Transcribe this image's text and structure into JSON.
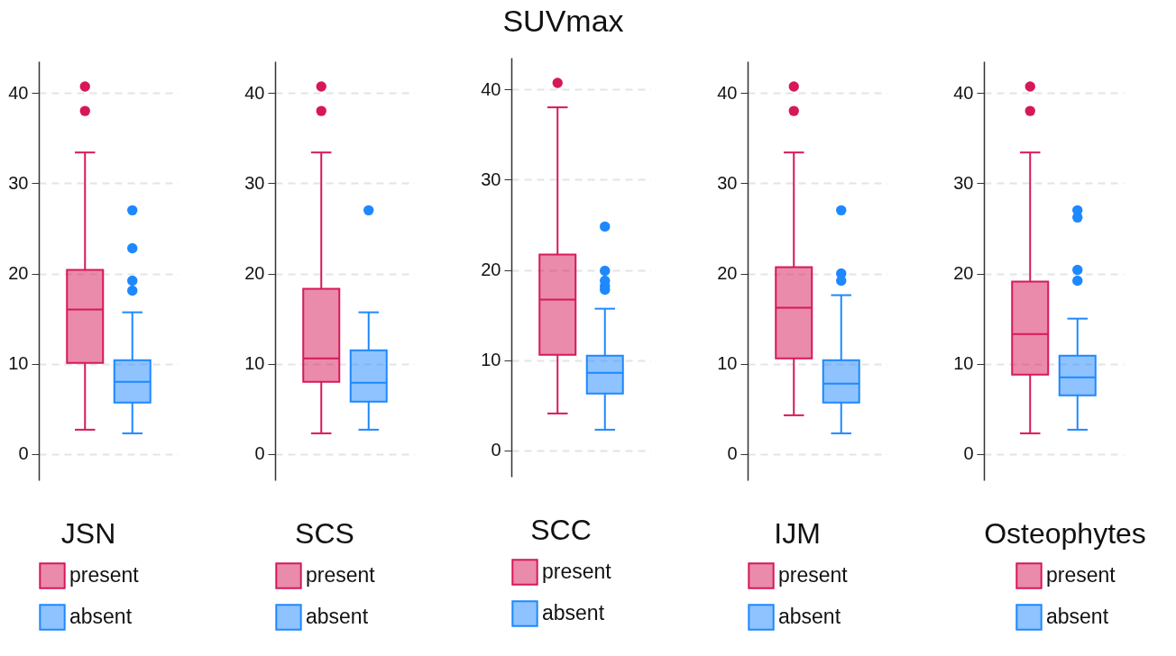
{
  "chart_data": [
    {
      "type": "box",
      "legend_title": "JSN",
      "categories": [
        null
      ],
      "ylim": [
        -2.9,
        43.5
      ],
      "yticks": [
        0,
        10,
        20,
        30,
        40
      ],
      "grid": "y",
      "legend": "bottom",
      "tick_labels": "y",
      "series": [
        {
          "name": "present",
          "color": "#d6185a",
          "boxes": [
            {
              "low": 2.7,
              "q1": 10.1,
              "median": 16,
              "q3": 20.4,
              "high": 33.4,
              "outliers": [
                38,
                40.7
              ]
            }
          ]
        },
        {
          "name": "absent",
          "color": "#1e88ff",
          "boxes": [
            {
              "low": 2.3,
              "q1": 5.7,
              "median": 8,
              "q3": 10.4,
              "high": 15.7,
              "outliers": [
                18.1,
                19.2,
                22.8,
                27
              ]
            }
          ]
        }
      ]
    },
    {
      "type": "box",
      "legend_title": "SCS",
      "categories": [
        null
      ],
      "ylim": [
        -2.9,
        43.5
      ],
      "yticks": [
        0,
        10,
        20,
        30,
        40
      ],
      "grid": "y",
      "legend": "bottom",
      "tick_labels": "y",
      "series": [
        {
          "name": "present",
          "color": "#d6185a",
          "boxes": [
            {
              "low": 2.3,
              "q1": 8,
              "median": 10.6,
              "q3": 18.3,
              "high": 33.4,
              "outliers": [
                38,
                40.7
              ]
            }
          ]
        },
        {
          "name": "absent",
          "color": "#1e88ff",
          "boxes": [
            {
              "low": 2.7,
              "q1": 5.8,
              "median": 7.9,
              "q3": 11.5,
              "high": 15.7,
              "outliers": [
                27
              ]
            }
          ]
        }
      ]
    },
    {
      "type": "box",
      "title": "SUVmax",
      "legend_title": "SCC",
      "categories": [
        null
      ],
      "ylim": [
        -2.9,
        43.5
      ],
      "yticks": [
        0,
        10,
        20,
        30,
        40
      ],
      "grid": "y",
      "legend": "bottom",
      "tick_labels": "y",
      "series": [
        {
          "name": "present",
          "color": "#d6185a",
          "boxes": [
            {
              "low": 4.1,
              "q1": 10.6,
              "median": 16.7,
              "q3": 21.7,
              "high": 38,
              "outliers": [
                40.7
              ]
            }
          ]
        },
        {
          "name": "absent",
          "color": "#1e88ff",
          "boxes": [
            {
              "low": 2.3,
              "q1": 6.3,
              "median": 8.6,
              "q3": 10.5,
              "high": 15.7,
              "outliers": [
                17.8,
                18.2,
                18.8,
                19.9,
                24.8
              ]
            }
          ]
        }
      ]
    },
    {
      "type": "box",
      "legend_title": "IJM",
      "categories": [
        null
      ],
      "ylim": [
        -2.9,
        43.5
      ],
      "yticks": [
        0,
        10,
        20,
        30,
        40
      ],
      "grid": "y",
      "legend": "bottom",
      "tick_labels": "y",
      "series": [
        {
          "name": "present",
          "color": "#d6185a",
          "boxes": [
            {
              "low": 4.3,
              "q1": 10.6,
              "median": 16.2,
              "q3": 20.7,
              "high": 33.4,
              "outliers": [
                38,
                40.7
              ]
            }
          ]
        },
        {
          "name": "absent",
          "color": "#1e88ff",
          "boxes": [
            {
              "low": 2.3,
              "q1": 5.7,
              "median": 7.8,
              "q3": 10.4,
              "high": 17.6,
              "outliers": [
                19.2,
                20,
                27
              ]
            }
          ]
        }
      ]
    },
    {
      "type": "box",
      "legend_title": "Osteophytes",
      "categories": [
        null
      ],
      "ylim": [
        -2.9,
        43.5
      ],
      "yticks": [
        0,
        10,
        20,
        30,
        40
      ],
      "grid": "y",
      "legend": "bottom",
      "tick_labels": "y",
      "series": [
        {
          "name": "present",
          "color": "#d6185a",
          "boxes": [
            {
              "low": 2.3,
              "q1": 8.8,
              "median": 13.3,
              "q3": 19.1,
              "high": 33.4,
              "outliers": [
                38,
                40.7
              ]
            }
          ]
        },
        {
          "name": "absent",
          "color": "#1e88ff",
          "boxes": [
            {
              "low": 2.7,
              "q1": 6.5,
              "median": 8.5,
              "q3": 10.9,
              "high": 15,
              "outliers": [
                19.2,
                20.4,
                26.2,
                27
              ]
            }
          ]
        }
      ]
    }
  ]
}
